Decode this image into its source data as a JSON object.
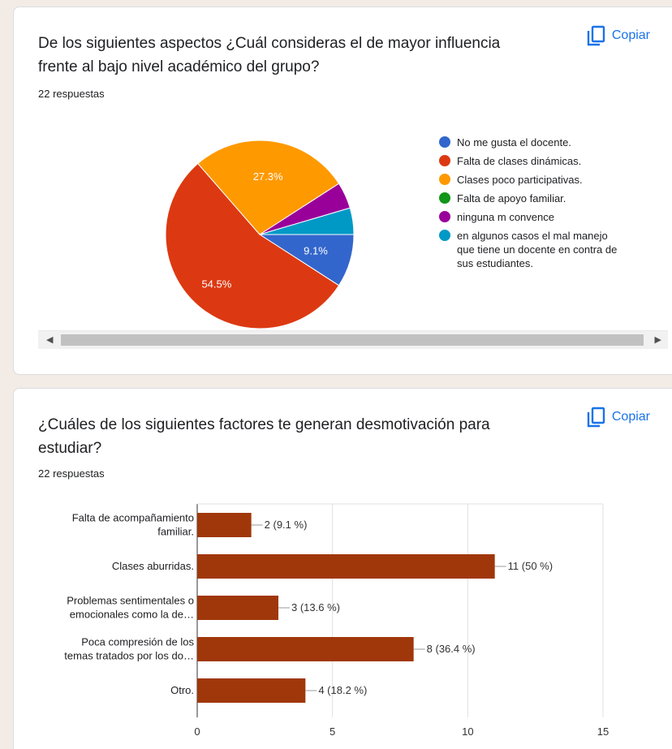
{
  "q1": {
    "title": " De los siguientes aspectos ¿Cuál consideras  el  de mayor influencia frente al bajo nivel académico del grupo?",
    "responses": "22 respuestas",
    "copy_label": "Copiar",
    "slice_labels": [
      "27.3%",
      "9.1%",
      "54.5%"
    ],
    "legend": [
      {
        "label": "No me gusta el docente.",
        "color": "#3366cc"
      },
      {
        "label": "Falta de clases dinámicas.",
        "color": "#dc3912"
      },
      {
        "label": "Clases poco participativas.",
        "color": "#ff9900"
      },
      {
        "label": "Falta de apoyo familiar.",
        "color": "#109618"
      },
      {
        "label": "ninguna m convence",
        "color": "#990099"
      },
      {
        "label": "en algunos casos el mal manejo que tiene un docente en contra de sus estudiantes.",
        "color": "#0099c6"
      }
    ]
  },
  "q2": {
    "title": "¿Cuáles de los siguientes factores te generan desmotivación para estudiar?",
    "responses": "22 respuestas",
    "copy_label": "Copiar"
  },
  "chart_data": [
    {
      "type": "pie",
      "categories": [
        "No me gusta el docente.",
        "Falta de clases dinámicas.",
        "Clases poco participativas.",
        "Falta de apoyo familiar.",
        "ninguna m convence",
        "en algunos casos el mal manejo que tiene un docente en contra de sus estudiantes."
      ],
      "values": [
        9.1,
        54.5,
        27.3,
        0,
        4.55,
        4.55
      ],
      "colors": [
        "#3366cc",
        "#dc3912",
        "#ff9900",
        "#109618",
        "#990099",
        "#0099c6"
      ],
      "legend_position": "right"
    },
    {
      "type": "bar",
      "orientation": "horizontal",
      "categories": [
        [
          "Falta de acompañamiento",
          "familiar."
        ],
        [
          "Clases aburridas."
        ],
        [
          "Problemas sentimentales o",
          "emocionales como la de…"
        ],
        [
          "Poca compresión de los",
          "temas tratados por los do…"
        ],
        [
          "Otro."
        ]
      ],
      "values": [
        2,
        11,
        3,
        8,
        4
      ],
      "data_labels": [
        "2 (9.1 %)",
        "11 (50 %)",
        "3 (13.6 %)",
        "8 (36.4 %)",
        "4 (18.2 %)"
      ],
      "xlim": [
        0,
        15
      ],
      "xticks": [
        "0",
        "5",
        "10",
        "15"
      ],
      "bar_color": "#a0370a",
      "grid": true
    }
  ]
}
